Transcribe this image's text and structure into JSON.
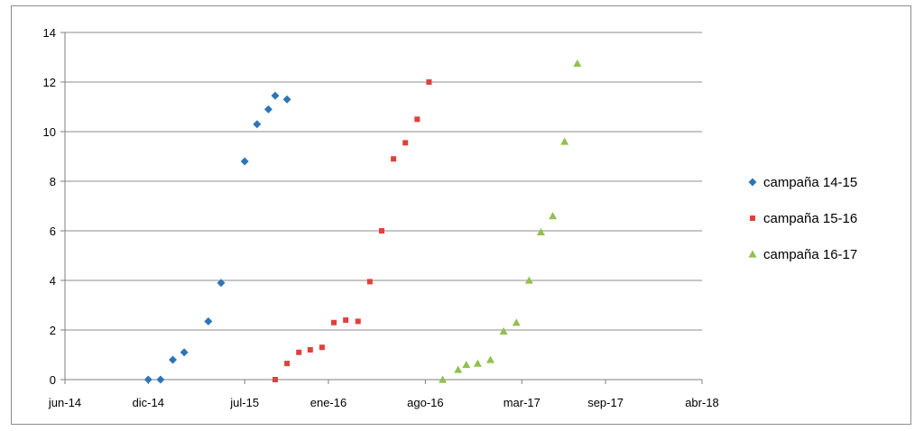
{
  "chart_data": {
    "type": "scatter",
    "title": "",
    "xlabel": "",
    "ylabel": "",
    "x_axis": {
      "type": "date",
      "min": "2014-06-01",
      "max": "2018-04-01",
      "tick_labels": [
        "jun-14",
        "dic-14",
        "jul-15",
        "ene-16",
        "ago-16",
        "mar-17",
        "sep-17",
        "abr-18"
      ],
      "tick_dates": [
        "2014-06-01",
        "2014-12-01",
        "2015-07-01",
        "2016-01-01",
        "2016-08-01",
        "2017-03-01",
        "2017-09-01",
        "2018-04-01"
      ]
    },
    "y_axis": {
      "min": 0,
      "max": 14,
      "step": 2,
      "tick_labels": [
        "0",
        "2",
        "4",
        "6",
        "8",
        "10",
        "12",
        "14"
      ]
    },
    "grid": {
      "horizontal": true,
      "vertical": false
    },
    "legend_position": "right",
    "series": [
      {
        "name": "campaña 14-15",
        "color": "#2e75b6",
        "marker": "diamond",
        "points": [
          {
            "x": "2014-12-01",
            "y": 0
          },
          {
            "x": "2014-12-28",
            "y": 0
          },
          {
            "x": "2015-01-24",
            "y": 0.8
          },
          {
            "x": "2015-02-18",
            "y": 1.1
          },
          {
            "x": "2015-04-12",
            "y": 2.35
          },
          {
            "x": "2015-05-10",
            "y": 3.9
          },
          {
            "x": "2015-07-01",
            "y": 8.8
          },
          {
            "x": "2015-07-28",
            "y": 10.3
          },
          {
            "x": "2015-08-22",
            "y": 10.9
          },
          {
            "x": "2015-09-06",
            "y": 11.45
          },
          {
            "x": "2015-10-02",
            "y": 11.3
          }
        ]
      },
      {
        "name": "campaña 15-16",
        "color": "#e0413e",
        "marker": "square",
        "points": [
          {
            "x": "2015-09-06",
            "y": 0
          },
          {
            "x": "2015-10-02",
            "y": 0.65
          },
          {
            "x": "2015-10-28",
            "y": 1.1
          },
          {
            "x": "2015-11-22",
            "y": 1.2
          },
          {
            "x": "2015-12-18",
            "y": 1.3
          },
          {
            "x": "2016-01-13",
            "y": 2.3
          },
          {
            "x": "2016-02-08",
            "y": 2.4
          },
          {
            "x": "2016-03-06",
            "y": 2.35
          },
          {
            "x": "2016-04-01",
            "y": 3.95
          },
          {
            "x": "2016-04-27",
            "y": 6.0
          },
          {
            "x": "2016-05-23",
            "y": 8.9
          },
          {
            "x": "2016-06-18",
            "y": 9.55
          },
          {
            "x": "2016-07-14",
            "y": 10.5
          },
          {
            "x": "2016-08-09",
            "y": 12.0
          }
        ]
      },
      {
        "name": "campaña 16-17",
        "color": "#92c050",
        "marker": "triangle",
        "points": [
          {
            "x": "2016-09-08",
            "y": 0
          },
          {
            "x": "2016-10-12",
            "y": 0.4
          },
          {
            "x": "2016-10-30",
            "y": 0.6
          },
          {
            "x": "2016-11-24",
            "y": 0.65
          },
          {
            "x": "2016-12-22",
            "y": 0.8
          },
          {
            "x": "2017-01-20",
            "y": 1.95
          },
          {
            "x": "2017-02-17",
            "y": 2.3
          },
          {
            "x": "2017-03-17",
            "y": 4.0
          },
          {
            "x": "2017-04-12",
            "y": 5.95
          },
          {
            "x": "2017-05-08",
            "y": 6.6
          },
          {
            "x": "2017-06-03",
            "y": 9.6
          },
          {
            "x": "2017-07-01",
            "y": 12.75
          }
        ]
      }
    ]
  }
}
